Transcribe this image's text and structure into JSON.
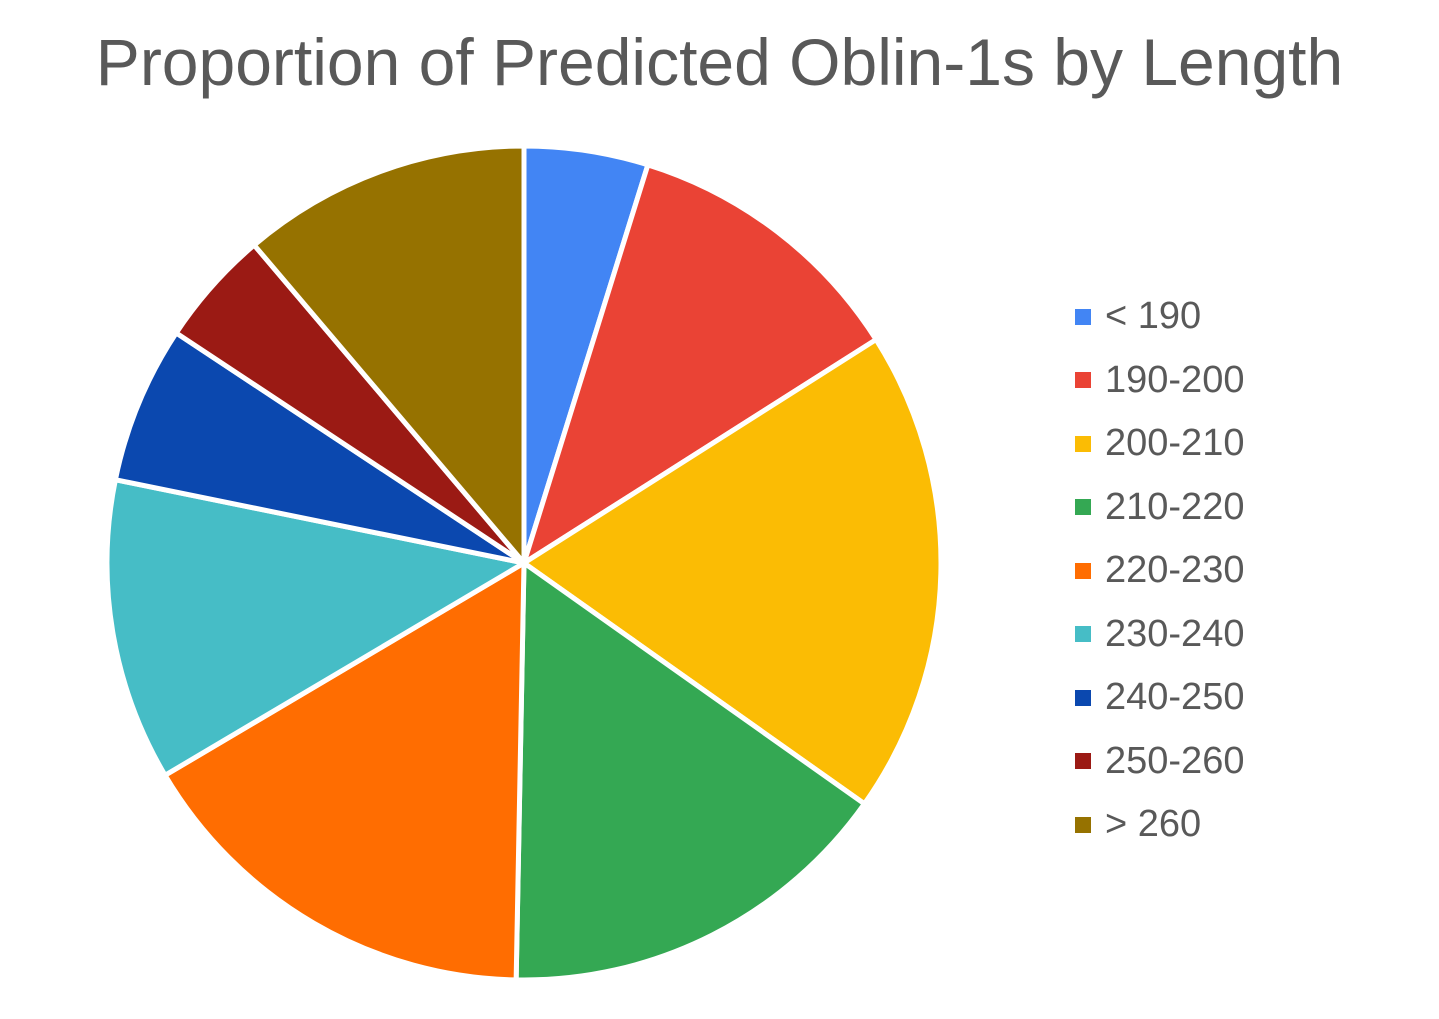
{
  "chart_data": {
    "type": "pie",
    "title": "Proportion of Predicted Oblin-1s by Length",
    "legend_position": "right",
    "slices": [
      {
        "label": "< 190",
        "value": 4.8,
        "color": "#4285F4"
      },
      {
        "label": "190-200",
        "value": 11.2,
        "color": "#EA4335"
      },
      {
        "label": "200-210",
        "value": 18.8,
        "color": "#FBBC04"
      },
      {
        "label": "210-220",
        "value": 15.5,
        "color": "#34A853"
      },
      {
        "label": "220-230",
        "value": 16.2,
        "color": "#FF6D01"
      },
      {
        "label": "230-240",
        "value": 11.7,
        "color": "#46BDC6"
      },
      {
        "label": "240-250",
        "value": 6.1,
        "color": "#0B48AF"
      },
      {
        "label": "250-260",
        "value": 4.5,
        "color": "#9B1A14"
      },
      {
        "label": "> 260",
        "value": 11.2,
        "color": "#967200"
      }
    ]
  }
}
